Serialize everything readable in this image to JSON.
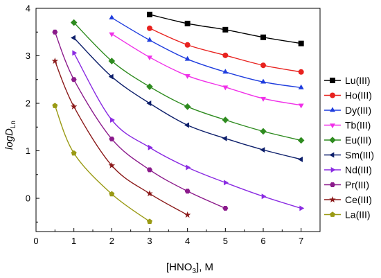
{
  "chart_data": {
    "type": "line",
    "xlim": [
      0,
      7.5
    ],
    "ylim": [
      -0.7,
      4
    ],
    "x_ticks": [
      0,
      1,
      2,
      3,
      4,
      5,
      6,
      7
    ],
    "y_ticks": [
      0,
      1,
      2,
      3,
      4
    ],
    "grid": false,
    "legend_position": "right",
    "series": [
      {
        "name": "Lu(III)",
        "color": "#000000",
        "marker": "square",
        "x": [
          3,
          4,
          5,
          6,
          7
        ],
        "y": [
          3.87,
          3.68,
          3.55,
          3.39,
          3.26
        ]
      },
      {
        "name": "Ho(III)",
        "color": "#e8221f",
        "marker": "circle",
        "x": [
          3,
          4,
          5,
          6,
          7
        ],
        "y": [
          3.58,
          3.23,
          3.01,
          2.8,
          2.66
        ]
      },
      {
        "name": "Dy(III)",
        "color": "#1f3dde",
        "marker": "triangle-up",
        "x": [
          2,
          3,
          4,
          5,
          6,
          7
        ],
        "y": [
          3.8,
          3.33,
          2.93,
          2.66,
          2.45,
          2.33
        ]
      },
      {
        "name": "Tb(III)",
        "color": "#f030e8",
        "marker": "triangle-down",
        "x": [
          2,
          3,
          4,
          5,
          6,
          7
        ],
        "y": [
          3.46,
          2.97,
          2.58,
          2.34,
          2.1,
          1.96
        ]
      },
      {
        "name": "Eu(III)",
        "color": "#2e8b1f",
        "marker": "diamond",
        "x": [
          1,
          2,
          3,
          4,
          5,
          6,
          7
        ],
        "y": [
          3.7,
          2.89,
          2.35,
          1.93,
          1.65,
          1.41,
          1.22
        ]
      },
      {
        "name": "Sm(III)",
        "color": "#0d1f6b",
        "marker": "triangle-left",
        "x": [
          1,
          2,
          3,
          4,
          5,
          6,
          7
        ],
        "y": [
          3.38,
          2.56,
          2.0,
          1.54,
          1.26,
          1.02,
          0.82
        ]
      },
      {
        "name": "Nd(III)",
        "color": "#8a2be2",
        "marker": "triangle-right",
        "x": [
          1,
          2,
          3,
          4,
          5,
          6,
          7
        ],
        "y": [
          3.06,
          1.65,
          1.07,
          0.65,
          0.33,
          0.04,
          -0.21
        ]
      },
      {
        "name": "Pr(III)",
        "color": "#8b1a8b",
        "marker": "hexagon",
        "x": [
          0.5,
          1,
          2,
          3,
          4,
          5
        ],
        "y": [
          3.5,
          2.5,
          1.25,
          0.6,
          0.15,
          -0.21
        ]
      },
      {
        "name": "Ce(III)",
        "color": "#8b1a1a",
        "marker": "star",
        "x": [
          0.5,
          1,
          2,
          3,
          4
        ],
        "y": [
          2.89,
          1.93,
          0.69,
          0.1,
          -0.35
        ]
      },
      {
        "name": "La(III)",
        "color": "#9a9a14",
        "marker": "pentagon",
        "x": [
          0.5,
          1,
          2,
          3
        ],
        "y": [
          1.95,
          0.95,
          0.09,
          -0.49
        ]
      }
    ]
  },
  "axes": {
    "ylabel_main": "logD",
    "ylabel_sub": "Ln",
    "xlabel_main": "[HNO",
    "xlabel_sub": "3",
    "xlabel_suffix": "], M"
  }
}
